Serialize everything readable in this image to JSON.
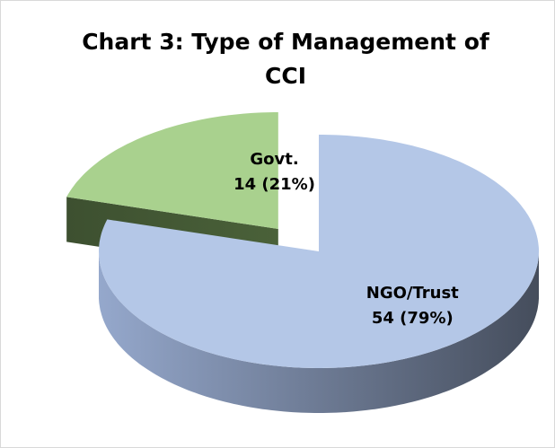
{
  "chart_data": {
    "type": "pie",
    "title": "Chart 3: Type of Management of CCI",
    "categories": [
      "NGO/Trust",
      "Govt."
    ],
    "values": [
      54,
      14
    ],
    "value_labels": [
      "54 (79%)",
      "14 (21%)"
    ],
    "colors": [
      "#b4c7e7",
      "#a9d18e"
    ],
    "exploded": [
      false,
      true
    ]
  }
}
